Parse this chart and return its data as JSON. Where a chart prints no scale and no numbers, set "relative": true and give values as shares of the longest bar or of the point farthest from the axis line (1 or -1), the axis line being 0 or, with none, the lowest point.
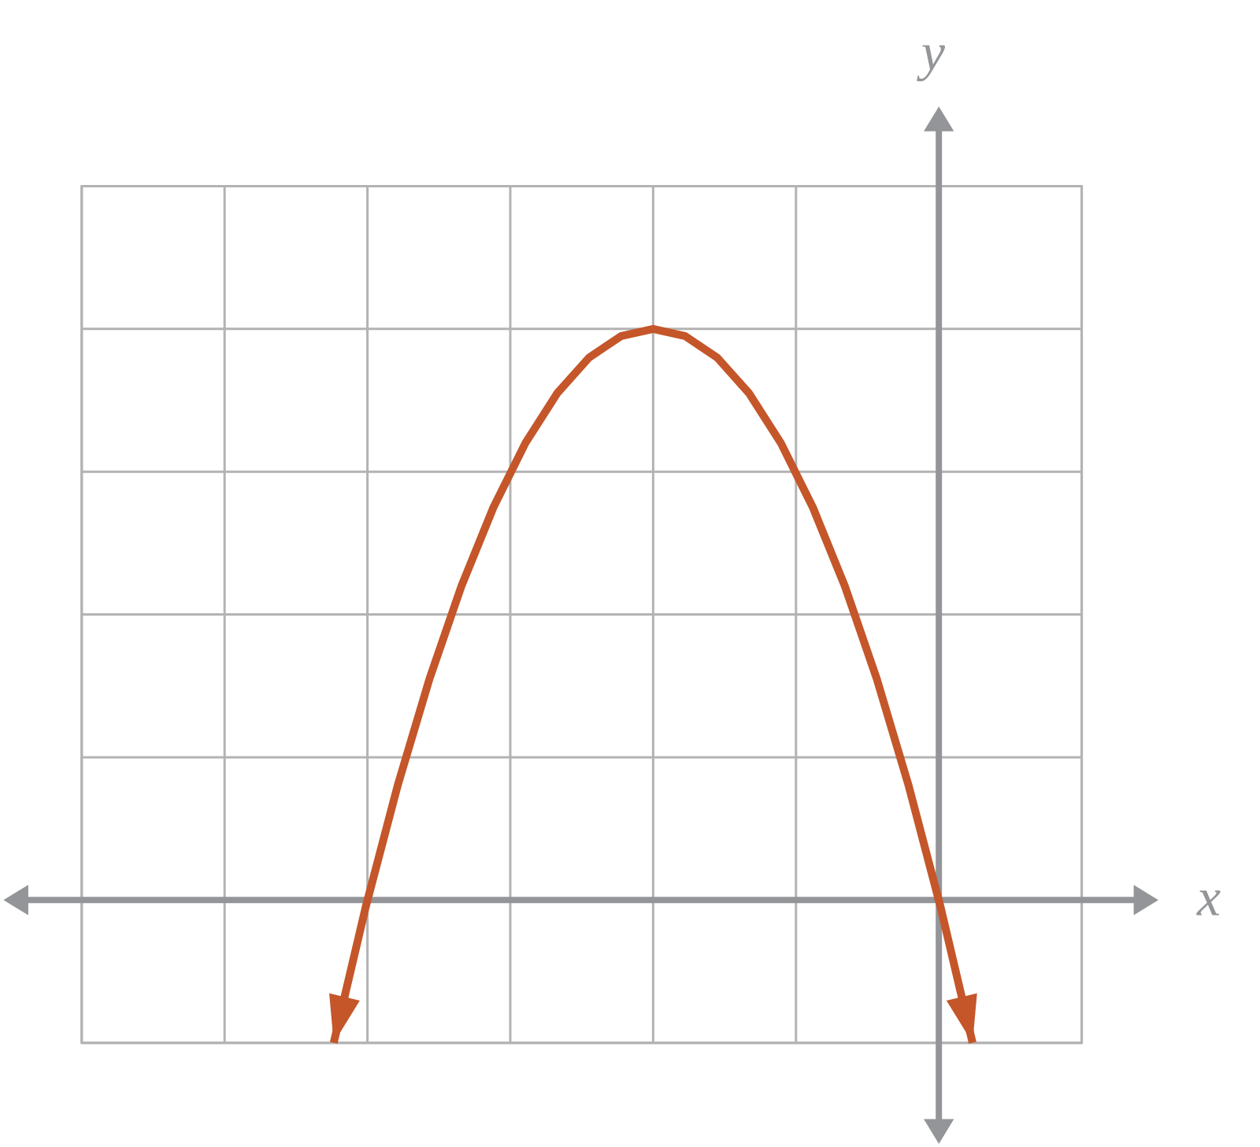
{
  "chart_data": {
    "type": "line",
    "xlabel": "x",
    "ylabel": "y",
    "relative": true,
    "grid": true,
    "color": "#c4562a",
    "categories": [
      null,
      null,
      null,
      null,
      null,
      null,
      null,
      null,
      null,
      null,
      null,
      null,
      null,
      null,
      null,
      null,
      null,
      null,
      null,
      null,
      null
    ],
    "values": [
      -0.25,
      -0.0125,
      0.2,
      0.3875,
      0.55,
      0.6875,
      0.8,
      0.8875,
      0.95,
      0.9875,
      1,
      0.9875,
      0.95,
      0.8875,
      0.8,
      0.6875,
      0.55,
      0.3875,
      0.2,
      -0.0125,
      -0.25
    ]
  }
}
